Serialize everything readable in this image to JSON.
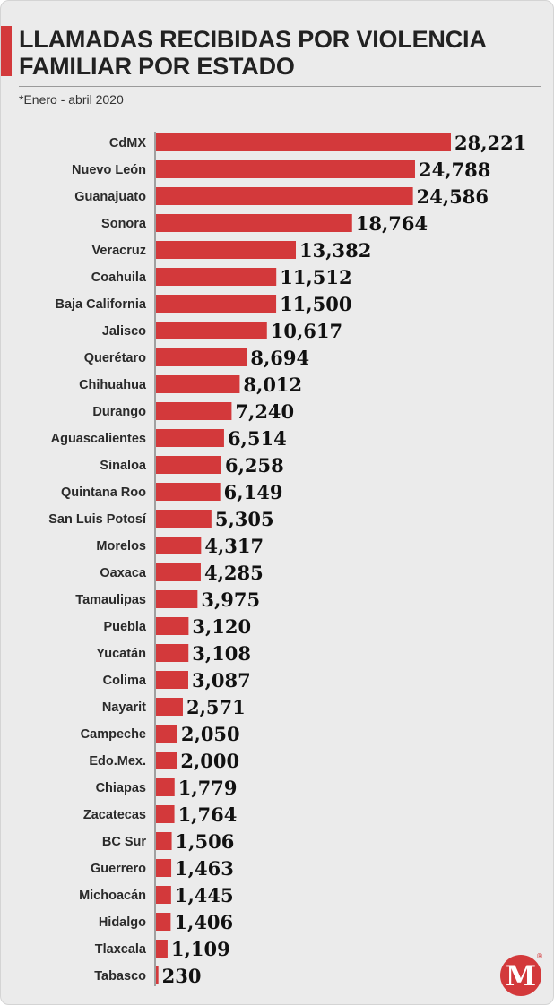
{
  "header": {
    "title_line1": "LLAMADAS RECIBIDAS POR VIOLENCIA",
    "title_line2": "FAMILIAR POR ESTADO",
    "subtitle": "*Enero - abril 2020"
  },
  "logo": {
    "letter": "M",
    "mark": "®"
  },
  "colors": {
    "bar": "#d3393b",
    "accent": "#d3393b",
    "background": "#ebebeb"
  },
  "chart_data": {
    "type": "bar",
    "orientation": "horizontal",
    "title": "LLAMADAS RECIBIDAS POR VIOLENCIA FAMILIAR POR ESTADO",
    "subtitle": "*Enero - abril 2020",
    "xlabel": "",
    "ylabel": "",
    "xlim": [
      0,
      28221
    ],
    "grid": false,
    "legend": "none",
    "categories": [
      "CdMX",
      "Nuevo León",
      "Guanajuato",
      "Sonora",
      "Veracruz",
      "Coahuila",
      "Baja California",
      "Jalisco",
      "Querétaro",
      "Chihuahua",
      "Durango",
      "Aguascalientes",
      "Sinaloa",
      "Quintana Roo",
      "San Luis Potosí",
      "Morelos",
      "Oaxaca",
      "Tamaulipas",
      "Puebla",
      "Yucatán",
      "Colima",
      "Nayarit",
      "Campeche",
      "Edo.Mex.",
      "Chiapas",
      "Zacatecas",
      "BC Sur",
      "Guerrero",
      "Michoacán",
      "Hidalgo",
      "Tlaxcala",
      "Tabasco"
    ],
    "values": [
      28221,
      24788,
      24586,
      18764,
      13382,
      11512,
      11500,
      10617,
      8694,
      8012,
      7240,
      6514,
      6258,
      6149,
      5305,
      4317,
      4285,
      3975,
      3120,
      3108,
      3087,
      2571,
      2050,
      2000,
      1779,
      1764,
      1506,
      1463,
      1445,
      1406,
      1109,
      230
    ],
    "value_labels": [
      "28,221",
      "24,788",
      "24,586",
      "18,764",
      "13,382",
      "11,512",
      "11,500",
      "10,617",
      "8,694",
      "8,012",
      "7,240",
      "6,514",
      "6,258",
      "6,149",
      "5,305",
      "4,317",
      "4,285",
      "3,975",
      "3,120",
      "3,108",
      "3,087",
      "2,571",
      "2,050",
      "2,000",
      "1,779",
      "1,764",
      "1,506",
      "1,463",
      "1,445",
      "1,406",
      "1,109",
      "230"
    ]
  }
}
